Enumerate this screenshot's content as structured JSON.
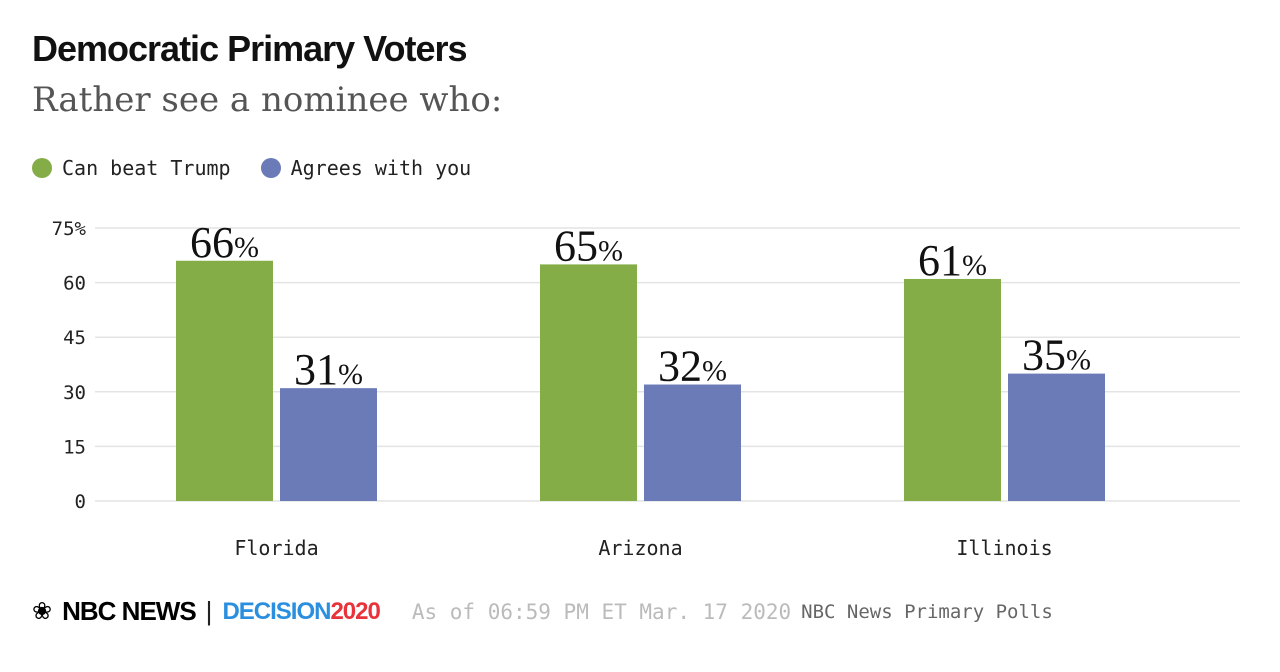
{
  "chart_data": {
    "type": "bar",
    "title": "Democratic Primary Voters",
    "subtitle": "Rather see a nominee who:",
    "categories": [
      "Florida",
      "Arizona",
      "Illinois"
    ],
    "series": [
      {
        "name": "Can beat Trump",
        "color": "#84ad48",
        "values": [
          66,
          65,
          61
        ]
      },
      {
        "name": "Agrees with you",
        "color": "#6a7bb8",
        "values": [
          31,
          32,
          35
        ]
      }
    ],
    "ylim": [
      0,
      75
    ],
    "yticks": [
      0,
      15,
      30,
      45,
      60,
      75
    ],
    "ytick_labels": [
      "0",
      "15",
      "30",
      "45",
      "60",
      "75%"
    ],
    "value_suffix": "%",
    "grid": true,
    "legend": "top-left"
  },
  "footer": {
    "logo_nbc": "NBC NEWS",
    "logo_decision": "DECISION",
    "logo_year": "2020",
    "as_of": "As of 06:59 PM ET Mar. 17 2020",
    "source": "NBC News Primary Polls"
  }
}
